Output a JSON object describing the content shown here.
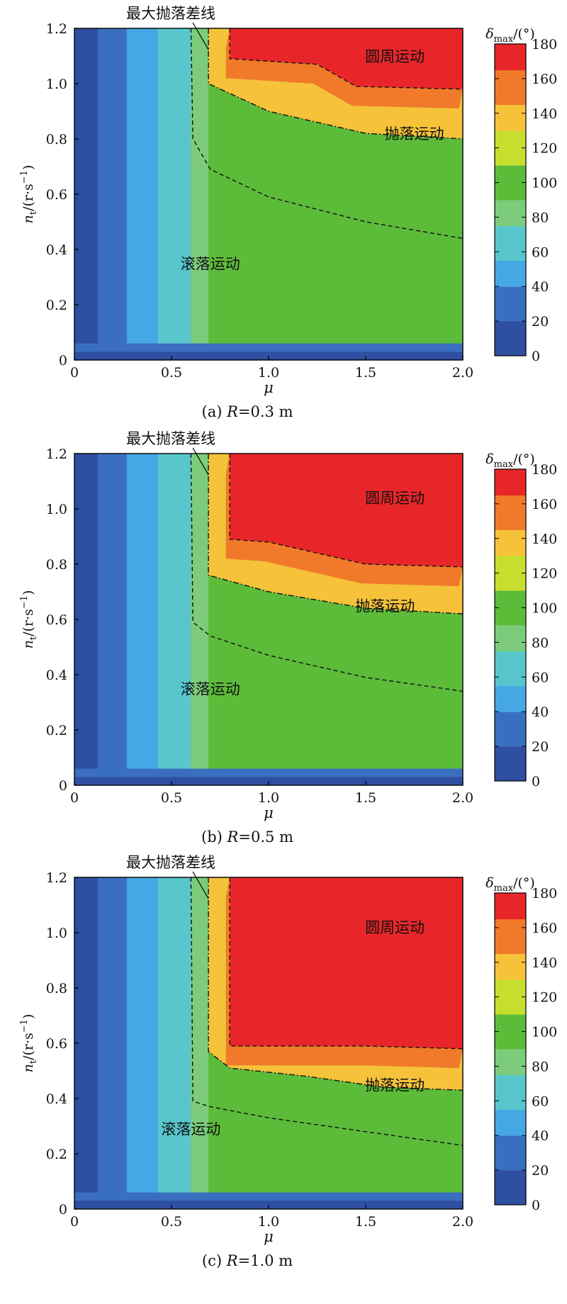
{
  "colors": {
    "scale": [
      "#2f4fa2",
      "#3a6fc0",
      "#45a8e4",
      "#58c6cc",
      "#7ccc7c",
      "#5dbb3a",
      "#c6de2e",
      "#f5c23a",
      "#f07a2a",
      "#e8262a"
    ],
    "background": "#ffffff",
    "border": "#000000"
  },
  "chart_data": [
    {
      "type": "heatmap",
      "panel_label": "(a)",
      "caption_prefix": "(a) ",
      "caption_var": "R",
      "caption_suffix": "=0.3 m",
      "xlabel": "μ",
      "ylabel_main": "n",
      "ylabel_sub": "t",
      "ylabel_unit": "/(r·s",
      "ylabel_sup": "−1",
      "ylabel_close": ")",
      "xlim": [
        0,
        2.0
      ],
      "ylim": [
        0,
        1.2
      ],
      "x_ticks": [
        "0",
        "0.5",
        "1.0",
        "1.5",
        "2.0"
      ],
      "y_ticks": [
        "0",
        "0.2",
        "0.4",
        "0.6",
        "0.8",
        "1.0",
        "1.2"
      ],
      "colorbar": {
        "label_main": "δ",
        "label_sub": "max",
        "label_unit": "/(°)",
        "ticks": [
          "0",
          "20",
          "40",
          "60",
          "80",
          "100",
          "120",
          "140",
          "160",
          "180"
        ],
        "range": [
          0,
          180
        ]
      },
      "legend_line_label": "最大抛落差线",
      "region_labels": {
        "circle": "圆周运动",
        "throw": "抛落运动",
        "roll": "滚落运动"
      },
      "region_label_positions": {
        "circle": [
          1.65,
          1.08
        ],
        "throw": [
          1.75,
          0.8
        ],
        "roll": [
          0.7,
          0.33
        ]
      },
      "boundaries": {
        "max_throw_line": [
          [
            0.69,
            1.2
          ],
          [
            0.69,
            1.0
          ],
          [
            1.0,
            0.9
          ],
          [
            1.5,
            0.82
          ],
          [
            2.0,
            0.8
          ]
        ],
        "circle_dashed": [
          [
            0.8,
            1.2
          ],
          [
            0.8,
            1.09
          ],
          [
            1.25,
            1.07
          ],
          [
            1.45,
            0.99
          ],
          [
            2.0,
            0.98
          ]
        ],
        "roll_dashed": [
          [
            0.6,
            1.2
          ],
          [
            0.61,
            0.8
          ],
          [
            0.7,
            0.69
          ],
          [
            1.0,
            0.59
          ],
          [
            1.5,
            0.5
          ],
          [
            2.0,
            0.44
          ]
        ]
      }
    },
    {
      "type": "heatmap",
      "panel_label": "(b)",
      "caption_prefix": "(b) ",
      "caption_var": "R",
      "caption_suffix": "=0.5 m",
      "xlabel": "μ",
      "ylabel_main": "n",
      "ylabel_sub": "t",
      "ylabel_unit": "/(r·s",
      "ylabel_sup": "−1",
      "ylabel_close": ")",
      "xlim": [
        0,
        2.0
      ],
      "ylim": [
        0,
        1.2
      ],
      "x_ticks": [
        "0",
        "0.5",
        "1.0",
        "1.5",
        "2.0"
      ],
      "y_ticks": [
        "0",
        "0.2",
        "0.4",
        "0.6",
        "0.8",
        "1.0",
        "1.2"
      ],
      "colorbar": {
        "label_main": "δ",
        "label_sub": "max",
        "label_unit": "/(°)",
        "ticks": [
          "0",
          "20",
          "40",
          "60",
          "80",
          "100",
          "120",
          "140",
          "160",
          "180"
        ],
        "range": [
          0,
          180
        ]
      },
      "legend_line_label": "最大抛落差线",
      "region_labels": {
        "circle": "圆周运动",
        "throw": "抛落运动",
        "roll": "滚落运动"
      },
      "region_label_positions": {
        "circle": [
          1.65,
          1.02
        ],
        "throw": [
          1.6,
          0.63
        ],
        "roll": [
          0.7,
          0.33
        ]
      },
      "boundaries": {
        "max_throw_line": [
          [
            0.69,
            1.2
          ],
          [
            0.69,
            0.76
          ],
          [
            1.0,
            0.7
          ],
          [
            1.5,
            0.64
          ],
          [
            2.0,
            0.62
          ]
        ],
        "circle_dashed": [
          [
            0.8,
            1.2
          ],
          [
            0.8,
            0.89
          ],
          [
            1.0,
            0.88
          ],
          [
            1.5,
            0.8
          ],
          [
            2.0,
            0.79
          ]
        ],
        "roll_dashed": [
          [
            0.6,
            1.2
          ],
          [
            0.61,
            0.59
          ],
          [
            0.7,
            0.54
          ],
          [
            1.0,
            0.47
          ],
          [
            1.5,
            0.39
          ],
          [
            2.0,
            0.34
          ]
        ]
      }
    },
    {
      "type": "heatmap",
      "panel_label": "(c)",
      "caption_prefix": "(c) ",
      "caption_var": "R",
      "caption_suffix": "=1.0 m",
      "xlabel": "μ",
      "ylabel_main": "n",
      "ylabel_sub": "t",
      "ylabel_unit": "/(r·s",
      "ylabel_sup": "−1",
      "ylabel_close": ")",
      "xlim": [
        0,
        2.0
      ],
      "ylim": [
        0,
        1.2
      ],
      "x_ticks": [
        "0",
        "0.5",
        "1.0",
        "1.5",
        "2.0"
      ],
      "y_ticks": [
        "0",
        "0.2",
        "0.4",
        "0.6",
        "0.8",
        "1.0",
        "1.2"
      ],
      "colorbar": {
        "label_main": "δ",
        "label_sub": "max",
        "label_unit": "/(°)",
        "ticks": [
          "0",
          "20",
          "40",
          "60",
          "80",
          "100",
          "120",
          "140",
          "160",
          "180"
        ],
        "range": [
          0,
          180
        ]
      },
      "legend_line_label": "最大抛落差线",
      "region_labels": {
        "circle": "圆周运动",
        "throw": "抛落运动",
        "roll": "滚落运动"
      },
      "region_label_positions": {
        "circle": [
          1.65,
          1.0
        ],
        "throw": [
          1.65,
          0.43
        ],
        "roll": [
          0.6,
          0.27
        ]
      },
      "boundaries": {
        "max_throw_line": [
          [
            0.69,
            1.2
          ],
          [
            0.69,
            0.57
          ],
          [
            0.8,
            0.51
          ],
          [
            1.2,
            0.48
          ],
          [
            1.6,
            0.44
          ],
          [
            2.0,
            0.43
          ]
        ],
        "circle_dashed": [
          [
            0.8,
            1.2
          ],
          [
            0.8,
            0.59
          ],
          [
            1.5,
            0.59
          ],
          [
            2.0,
            0.58
          ]
        ],
        "roll_dashed": [
          [
            0.6,
            1.2
          ],
          [
            0.61,
            0.39
          ],
          [
            0.7,
            0.37
          ],
          [
            1.0,
            0.33
          ],
          [
            1.5,
            0.28
          ],
          [
            2.0,
            0.23
          ]
        ]
      }
    }
  ]
}
